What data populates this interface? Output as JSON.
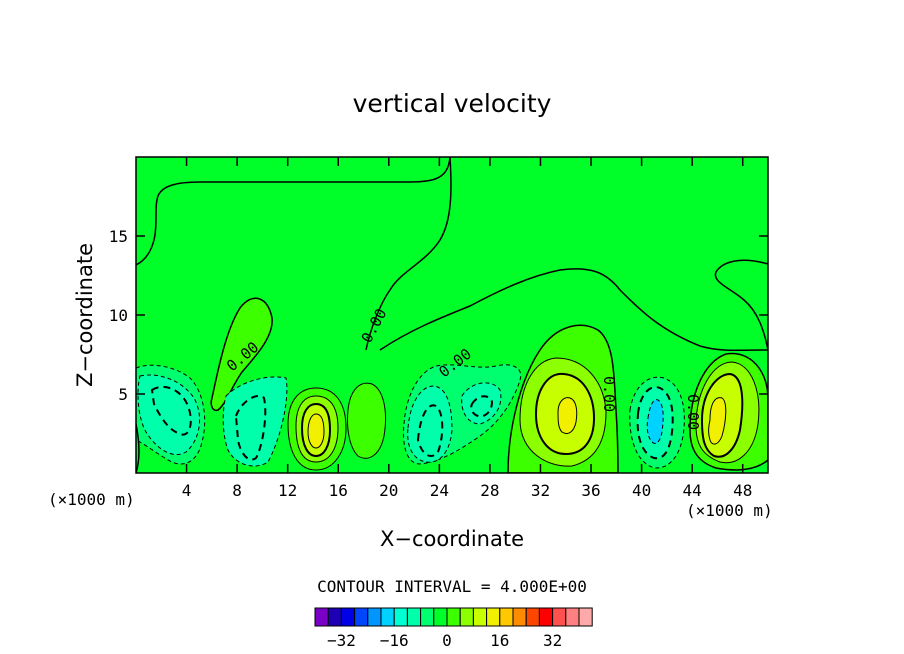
{
  "chart_data": {
    "type": "contour",
    "title": "vertical velocity",
    "xlabel": "X−coordinate",
    "ylabel": "Z−coordinate",
    "x_unit_left": "(×1000 m)",
    "x_unit_right": "(×1000 m)",
    "xlim": [
      0,
      50
    ],
    "ylim": [
      0,
      20
    ],
    "x_ticks": [
      4,
      8,
      12,
      16,
      20,
      24,
      28,
      32,
      36,
      40,
      44,
      48
    ],
    "y_ticks": [
      5,
      10,
      15
    ],
    "contour_label": "0.00",
    "contour_interval_text": "CONTOUR INTERVAL = 4.000E+00",
    "colorbar": {
      "colors": [
        "#7a00c8",
        "#1e00b4",
        "#0000e6",
        "#0046ff",
        "#0096ff",
        "#00d2ff",
        "#00ffd2",
        "#00ffaa",
        "#00ff6e",
        "#00ff28",
        "#3cff00",
        "#8cff00",
        "#c8ff00",
        "#f0f000",
        "#ffc800",
        "#ff8c00",
        "#ff4600",
        "#ff0000",
        "#ff5050",
        "#ff8080",
        "#ffaaaa"
      ],
      "tick_labels": [
        "−32",
        "−16",
        "0",
        "16",
        "32"
      ],
      "tick_values": [
        -32,
        -16,
        0,
        16,
        32
      ]
    },
    "extrema": [
      {
        "x": 3.2,
        "z": 4.3,
        "value": -8,
        "sign": "down"
      },
      {
        "x": 9.5,
        "z": 3.0,
        "value": -8,
        "sign": "down"
      },
      {
        "x": 14.2,
        "z": 2.9,
        "value": 12,
        "sign": "up"
      },
      {
        "x": 17.6,
        "z": 3.5,
        "value": 6,
        "sign": "up"
      },
      {
        "x": 22.5,
        "z": 3.1,
        "value": -8,
        "sign": "down"
      },
      {
        "x": 27.0,
        "z": 4.0,
        "value": -6,
        "sign": "down"
      },
      {
        "x": 33.8,
        "z": 3.7,
        "value": 14,
        "sign": "up"
      },
      {
        "x": 40.8,
        "z": 3.5,
        "value": -12,
        "sign": "down"
      },
      {
        "x": 45.6,
        "z": 3.4,
        "value": 14,
        "sign": "up"
      }
    ]
  }
}
